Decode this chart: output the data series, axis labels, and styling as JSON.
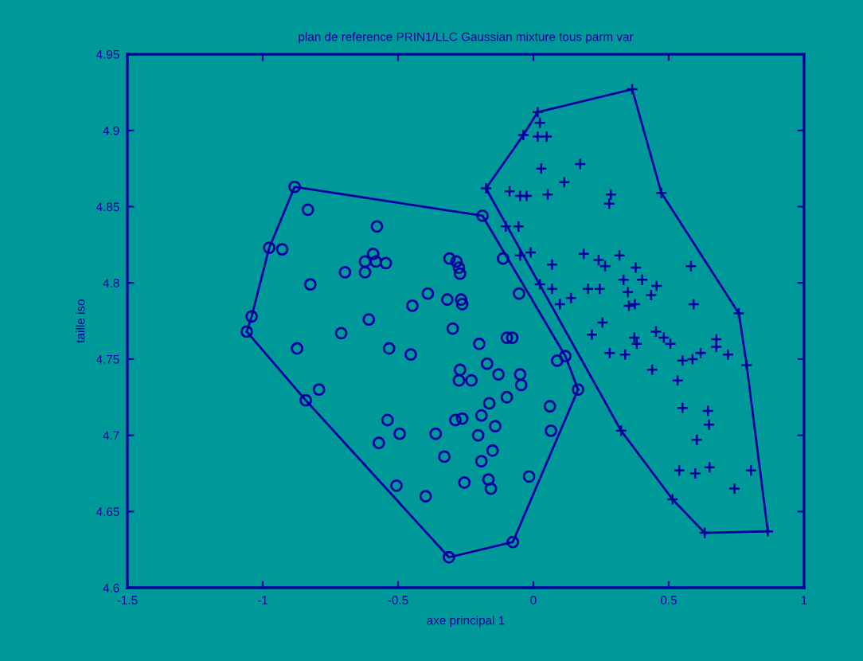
{
  "chart_data": {
    "type": "scatter",
    "title": "plan de reference PRIN1/LLC Gaussian mixture tous parm var",
    "xlabel": "axe principal 1",
    "ylabel": "taille iso",
    "xlim": [
      -1.5,
      1
    ],
    "xticks": [
      -1.5,
      -1,
      -0.5,
      0,
      0.5,
      1
    ],
    "ylim": [
      4.6,
      4.95
    ],
    "yticks": [
      4.6,
      4.65,
      4.7,
      4.75,
      4.8,
      4.85,
      4.9,
      4.95
    ],
    "grid": false,
    "legend": false,
    "series": [
      {
        "marker": "circle",
        "color": "#0000a0",
        "x": [
          -0.882,
          -0.188,
          0.118,
          0.165,
          -0.076,
          -0.312,
          -0.841,
          -1.059,
          -1.041,
          -0.976,
          -0.833,
          -0.578,
          -0.928,
          -0.592,
          -0.622,
          -0.582,
          -0.545,
          -0.696,
          -0.622,
          -0.824,
          -0.31,
          -0.284,
          -0.275,
          -0.271,
          -0.112,
          -0.39,
          -0.447,
          -0.318,
          -0.267,
          -0.263,
          -0.053,
          -0.608,
          -0.71,
          -0.298,
          -0.873,
          -0.533,
          -0.453,
          -0.2,
          -0.098,
          -0.078,
          -0.171,
          -0.271,
          -0.275,
          -0.229,
          -0.129,
          -0.049,
          -0.045,
          0.088,
          -0.792,
          -0.098,
          -0.163,
          0.061,
          -0.539,
          -0.494,
          -0.571,
          -0.361,
          -0.288,
          -0.263,
          -0.192,
          -0.141,
          -0.204,
          0.065,
          -0.329,
          -0.151,
          -0.192,
          -0.506,
          -0.398,
          -0.255,
          -0.166,
          -0.157,
          -0.016
        ],
        "values": [
          4.863,
          4.844,
          4.752,
          4.73,
          4.63,
          4.62,
          4.723,
          4.768,
          4.778,
          4.823,
          4.848,
          4.837,
          4.822,
          4.819,
          4.814,
          4.814,
          4.813,
          4.807,
          4.807,
          4.799,
          4.816,
          4.814,
          4.81,
          4.806,
          4.816,
          4.793,
          4.785,
          4.789,
          4.789,
          4.786,
          4.793,
          4.776,
          4.767,
          4.77,
          4.757,
          4.757,
          4.753,
          4.76,
          4.764,
          4.764,
          4.747,
          4.743,
          4.736,
          4.736,
          4.74,
          4.74,
          4.733,
          4.749,
          4.73,
          4.725,
          4.721,
          4.719,
          4.71,
          4.701,
          4.695,
          4.701,
          4.71,
          4.711,
          4.713,
          4.706,
          4.7,
          4.703,
          4.686,
          4.69,
          4.683,
          4.667,
          4.66,
          4.669,
          4.671,
          4.665,
          4.673
        ]
      },
      {
        "type": "line",
        "marker": "none",
        "color": "#0000a0",
        "x": [
          -1.059,
          -1.041,
          -0.976,
          -0.882,
          -0.188,
          0.118,
          0.165
        ],
        "values": [
          4.768,
          4.778,
          4.823,
          4.863,
          4.844,
          4.752,
          4.73
        ]
      },
      {
        "type": "line",
        "marker": "none",
        "color": "#0000a0",
        "x": [
          -1.059,
          -0.841,
          -0.312,
          -0.076,
          0.165
        ],
        "values": [
          4.768,
          4.723,
          4.62,
          4.63,
          4.73
        ]
      },
      {
        "marker": "cross",
        "color": "#0000a0",
        "x": [
          0.016,
          0.365,
          0.473,
          0.759,
          0.788,
          0.866,
          0.633,
          0.514,
          0.324,
          -0.175,
          -0.037,
          0.024,
          0.016,
          0.049,
          0.029,
          0.173,
          0.114,
          -0.088,
          -0.049,
          -0.025,
          0.053,
          0.286,
          0.28,
          -0.102,
          -0.055,
          -0.049,
          -0.01,
          0.069,
          0.186,
          0.241,
          0.265,
          0.318,
          0.378,
          0.582,
          0.024,
          0.069,
          0.139,
          0.098,
          0.202,
          0.245,
          0.333,
          0.402,
          0.455,
          0.435,
          0.349,
          0.353,
          0.375,
          0.592,
          0.255,
          0.216,
          0.453,
          0.482,
          0.506,
          0.373,
          0.382,
          0.676,
          0.676,
          0.719,
          0.282,
          0.339,
          0.551,
          0.588,
          0.618,
          0.439,
          0.533,
          0.551,
          0.645,
          0.649,
          0.604,
          0.539,
          0.598,
          0.651,
          0.804,
          0.743
        ],
        "values": [
          4.912,
          4.927,
          4.859,
          4.78,
          4.746,
          4.637,
          4.636,
          4.658,
          4.703,
          4.862,
          4.897,
          4.905,
          4.896,
          4.896,
          4.875,
          4.878,
          4.866,
          4.86,
          4.857,
          4.857,
          4.858,
          4.858,
          4.852,
          4.837,
          4.837,
          4.818,
          4.82,
          4.812,
          4.819,
          4.815,
          4.811,
          4.818,
          4.81,
          4.811,
          4.799,
          4.796,
          4.79,
          4.786,
          4.796,
          4.796,
          4.802,
          4.802,
          4.798,
          4.792,
          4.794,
          4.785,
          4.786,
          4.786,
          4.774,
          4.766,
          4.768,
          4.764,
          4.76,
          4.764,
          4.76,
          4.763,
          4.758,
          4.753,
          4.754,
          4.753,
          4.749,
          4.75,
          4.754,
          4.743,
          4.736,
          4.718,
          4.716,
          4.707,
          4.697,
          4.677,
          4.675,
          4.679,
          4.677,
          4.665
        ]
      },
      {
        "type": "line",
        "marker": "none",
        "color": "#0000a0",
        "x": [
          -0.175,
          -0.037,
          0.016,
          0.365,
          0.473,
          0.759,
          0.788,
          0.866
        ],
        "values": [
          4.862,
          4.897,
          4.912,
          4.927,
          4.859,
          4.78,
          4.746,
          4.637
        ]
      },
      {
        "type": "line",
        "marker": "none",
        "color": "#0000a0",
        "x": [
          -0.175,
          0.324,
          0.514,
          0.633,
          0.866
        ],
        "values": [
          4.862,
          4.703,
          4.658,
          4.636,
          4.637
        ]
      }
    ]
  }
}
